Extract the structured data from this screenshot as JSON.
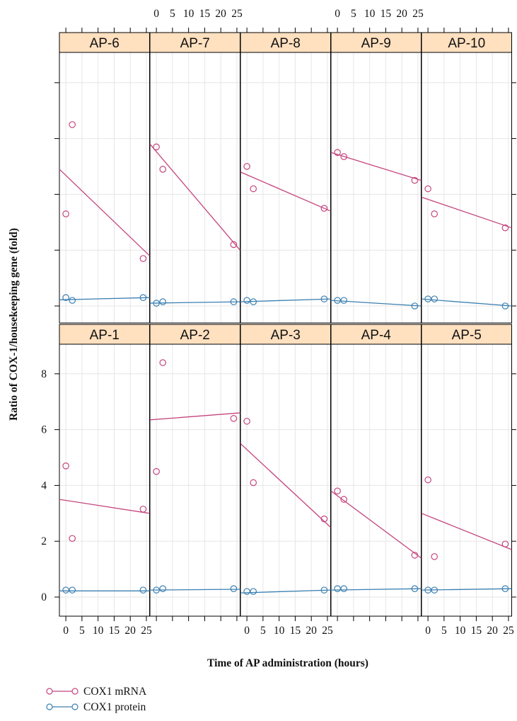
{
  "chart_data": {
    "type": "line",
    "xlabel": "Time of AP administration (hours)",
    "ylabel": "Ratio of COX-1/housekeeping gene (fold)",
    "xlim": [
      -2,
      26
    ],
    "ylim": [
      -0.5,
      9
    ],
    "xticks": [
      0,
      5,
      10,
      15,
      20,
      25
    ],
    "yticks": [
      0,
      2,
      4,
      6,
      8
    ],
    "grid": true,
    "colors": {
      "strip": "#ffe0bf",
      "mrna": "#c4457e",
      "protein": "#3a7fb0",
      "grid": "#e6e6e6"
    },
    "legend": {
      "placement": "bottom-left",
      "entries": [
        {
          "name": "COX1 mRNA",
          "color": "#c4457e"
        },
        {
          "name": "COX1 protein",
          "color": "#3a7fb0"
        }
      ]
    },
    "panels": [
      {
        "name": "AP-6",
        "mrna": [
          [
            0,
            3.3
          ],
          [
            2,
            6.5
          ],
          [
            24,
            1.7
          ]
        ],
        "mrna_fit": [
          4.9,
          1.8
        ],
        "protein": [
          [
            0,
            0.3
          ],
          [
            2,
            0.2
          ],
          [
            24,
            0.3
          ]
        ],
        "protein_fit": [
          0.22,
          0.3
        ]
      },
      {
        "name": "AP-7",
        "mrna": [
          [
            0,
            5.7
          ],
          [
            2,
            4.9
          ],
          [
            24,
            2.2
          ]
        ],
        "mrna_fit": [
          5.8,
          2.0
        ],
        "protein": [
          [
            0,
            0.1
          ],
          [
            2,
            0.15
          ],
          [
            24,
            0.15
          ]
        ],
        "protein_fit": [
          0.1,
          0.15
        ]
      },
      {
        "name": "AP-8",
        "mrna": [
          [
            0,
            5.0
          ],
          [
            2,
            4.2
          ],
          [
            24,
            3.5
          ]
        ],
        "mrna_fit": [
          4.8,
          3.4
        ],
        "protein": [
          [
            0,
            0.2
          ],
          [
            2,
            0.15
          ],
          [
            24,
            0.25
          ]
        ],
        "protein_fit": [
          0.15,
          0.25
        ]
      },
      {
        "name": "AP-9",
        "mrna": [
          [
            0,
            5.5
          ],
          [
            2,
            5.35
          ],
          [
            24,
            4.5
          ]
        ],
        "mrna_fit": [
          5.5,
          4.5
        ],
        "protein": [
          [
            0,
            0.2
          ],
          [
            2,
            0.2
          ],
          [
            24,
            0.0
          ]
        ],
        "protein_fit": [
          0.2,
          0.0
        ]
      },
      {
        "name": "AP-10",
        "mrna": [
          [
            0,
            4.2
          ],
          [
            2,
            3.3
          ],
          [
            24,
            2.8
          ]
        ],
        "mrna_fit": [
          3.9,
          2.8
        ],
        "protein": [
          [
            0,
            0.25
          ],
          [
            2,
            0.25
          ],
          [
            24,
            0.0
          ]
        ],
        "protein_fit": [
          0.25,
          0.0
        ]
      },
      {
        "name": "AP-1",
        "mrna": [
          [
            0,
            4.7
          ],
          [
            2,
            2.1
          ],
          [
            24,
            3.15
          ]
        ],
        "mrna_fit": [
          3.5,
          3.0
        ],
        "protein": [
          [
            0,
            0.25
          ],
          [
            2,
            0.25
          ],
          [
            24,
            0.25
          ]
        ],
        "protein_fit": [
          0.22,
          0.22
        ]
      },
      {
        "name": "AP-2",
        "mrna": [
          [
            0,
            4.5
          ],
          [
            2,
            8.4
          ],
          [
            24,
            6.4
          ]
        ],
        "mrna_fit": [
          6.35,
          6.6
        ],
        "protein": [
          [
            0,
            0.25
          ],
          [
            2,
            0.3
          ],
          [
            24,
            0.3
          ]
        ],
        "protein_fit": [
          0.25,
          0.28
        ]
      },
      {
        "name": "AP-3",
        "mrna": [
          [
            0,
            6.3
          ],
          [
            2,
            4.1
          ],
          [
            24,
            2.8
          ]
        ],
        "mrna_fit": [
          5.5,
          2.5
        ],
        "protein": [
          [
            0,
            0.2
          ],
          [
            2,
            0.2
          ],
          [
            24,
            0.25
          ]
        ],
        "protein_fit": [
          0.15,
          0.25
        ]
      },
      {
        "name": "AP-4",
        "mrna": [
          [
            0,
            3.8
          ],
          [
            2,
            3.5
          ],
          [
            24,
            1.5
          ]
        ],
        "mrna_fit": [
          3.8,
          1.4
        ],
        "protein": [
          [
            0,
            0.3
          ],
          [
            2,
            0.3
          ],
          [
            24,
            0.3
          ]
        ],
        "protein_fit": [
          0.25,
          0.3
        ]
      },
      {
        "name": "AP-5",
        "mrna": [
          [
            0,
            4.2
          ],
          [
            2,
            1.45
          ],
          [
            24,
            1.9
          ]
        ],
        "mrna_fit": [
          3.0,
          1.7
        ],
        "protein": [
          [
            0,
            0.25
          ],
          [
            2,
            0.25
          ],
          [
            24,
            0.3
          ]
        ],
        "protein_fit": [
          0.25,
          0.3
        ]
      }
    ]
  }
}
